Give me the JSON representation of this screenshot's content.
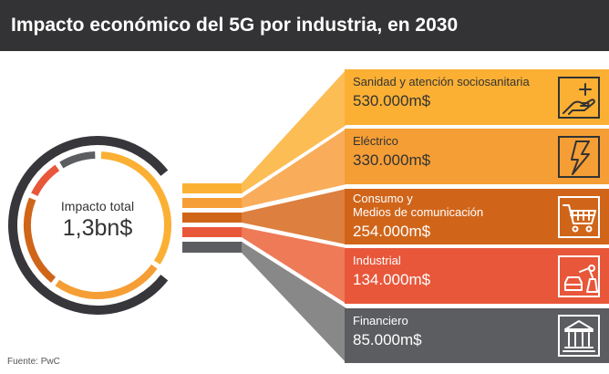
{
  "title": "Impacto económico del 5G por industria, en 2030",
  "source": "Fuente: PwC",
  "chart_data": {
    "type": "infographic-breakdown",
    "title": "Impacto económico del 5G por industria, en 2030",
    "total_label": "Impacto total",
    "total_value": "1,3bn$",
    "categories": [
      "Sanidad y atención sociosanitaria",
      "Eléctrico",
      "Consumo y Medios de comunicación",
      "Industrial",
      "Financiero"
    ],
    "values": [
      530000,
      330000,
      254000,
      134000,
      85000
    ],
    "unit": "m$",
    "value_labels": [
      "530.000m$",
      "330.000m$",
      "254.000m$",
      "134.000m$",
      "85.000m$"
    ],
    "label_lines": [
      [
        "Sanidad y atención sociosanitaria"
      ],
      [
        "Eléctrico"
      ],
      [
        "Consumo y",
        "Medios de comunicación"
      ],
      [
        "Industrial"
      ],
      [
        "Financiero"
      ]
    ],
    "icons": [
      "hand-plus-icon",
      "lightning-icon",
      "shopping-cart-icon",
      "robot-car-icon",
      "bank-icon"
    ],
    "colors": [
      "#fbb034",
      "#f59e35",
      "#d0651a",
      "#e8573a",
      "#5c5d60"
    ],
    "fan_colors": [
      "#fcbd55",
      "#f9ac5a",
      "#dc7f3f",
      "#ee7a58",
      "#888889"
    ]
  }
}
